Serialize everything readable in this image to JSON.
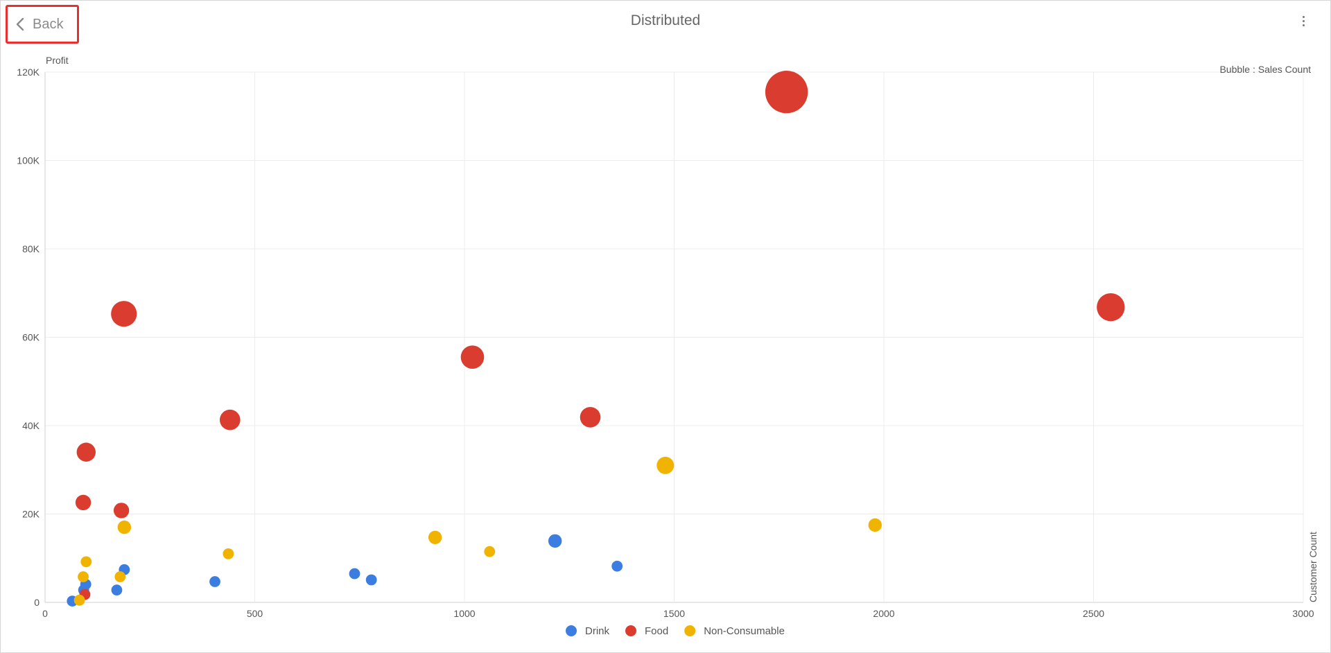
{
  "header": {
    "back_label": "Back",
    "title": "Distributed"
  },
  "chart_data": {
    "type": "scatter",
    "variant": "bubble",
    "title": "Distributed",
    "xlabel": "Customer Count",
    "ylabel": "Profit",
    "size_label": "Bubble : Sales Count",
    "xlim": [
      0,
      3000
    ],
    "ylim": [
      0,
      120000
    ],
    "x_ticks": [
      0,
      500,
      1000,
      1500,
      2000,
      2500,
      3000
    ],
    "y_ticks": [
      0,
      20000,
      40000,
      60000,
      80000,
      100000,
      120000
    ],
    "x_tick_labels": [
      "0",
      "500",
      "1000",
      "1500",
      "2000",
      "2500",
      "3000"
    ],
    "y_tick_labels": [
      "0",
      "20K",
      "40K",
      "60K",
      "80K",
      "100K",
      "120K"
    ],
    "grid": true,
    "legend_position": "bottom",
    "series": [
      {
        "name": "Drink",
        "color": "#3b7de0",
        "points": [
          {
            "x": 65,
            "y": 300,
            "size": 2
          },
          {
            "x": 92,
            "y": 2800,
            "size": 2
          },
          {
            "x": 97,
            "y": 4100,
            "size": 2
          },
          {
            "x": 171,
            "y": 2800,
            "size": 2
          },
          {
            "x": 189,
            "y": 7400,
            "size": 2
          },
          {
            "x": 405,
            "y": 4700,
            "size": 2
          },
          {
            "x": 738,
            "y": 6500,
            "size": 2
          },
          {
            "x": 778,
            "y": 5100,
            "size": 2
          },
          {
            "x": 1216,
            "y": 13900,
            "size": 3
          },
          {
            "x": 1364,
            "y": 8200,
            "size": 2
          }
        ]
      },
      {
        "name": "Food",
        "color": "#db3c30",
        "points": [
          {
            "x": 95,
            "y": 1800,
            "size": 2
          },
          {
            "x": 91,
            "y": 22600,
            "size": 4
          },
          {
            "x": 98,
            "y": 34000,
            "size": 6
          },
          {
            "x": 182,
            "y": 20800,
            "size": 4
          },
          {
            "x": 188,
            "y": 65300,
            "size": 11
          },
          {
            "x": 441,
            "y": 41300,
            "size": 7
          },
          {
            "x": 1019,
            "y": 55500,
            "size": 9
          },
          {
            "x": 1300,
            "y": 41900,
            "size": 7
          },
          {
            "x": 1768,
            "y": 115500,
            "size": 30
          },
          {
            "x": 2541,
            "y": 66800,
            "size": 13
          }
        ]
      },
      {
        "name": "Non-Consumable",
        "color": "#f0b400",
        "points": [
          {
            "x": 82,
            "y": 500,
            "size": 2
          },
          {
            "x": 91,
            "y": 5800,
            "size": 2
          },
          {
            "x": 98,
            "y": 9200,
            "size": 2
          },
          {
            "x": 179,
            "y": 5800,
            "size": 2
          },
          {
            "x": 189,
            "y": 17000,
            "size": 3
          },
          {
            "x": 437,
            "y": 11000,
            "size": 2
          },
          {
            "x": 930,
            "y": 14700,
            "size": 3
          },
          {
            "x": 1060,
            "y": 11500,
            "size": 2
          },
          {
            "x": 1479,
            "y": 31000,
            "size": 5
          },
          {
            "x": 1979,
            "y": 17500,
            "size": 3
          }
        ]
      }
    ]
  }
}
